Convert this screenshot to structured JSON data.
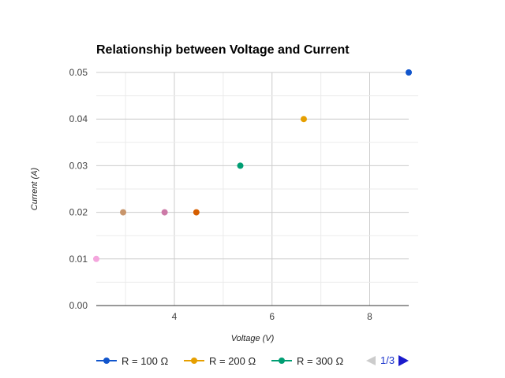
{
  "chart_data": {
    "type": "scatter",
    "title": "Relationship between Voltage and Current",
    "xlabel": "Voltage (V)",
    "ylabel": "Current (A)",
    "xlim": [
      2.4,
      8.8
    ],
    "ylim": [
      0,
      0.05
    ],
    "x_ticks": [
      4,
      6,
      8
    ],
    "y_ticks": [
      0.0,
      0.01,
      0.02,
      0.03,
      0.04,
      0.05
    ],
    "x_tick_labels": [
      "4",
      "6",
      "8"
    ],
    "y_tick_labels": [
      "0.00",
      "0.01",
      "0.02",
      "0.03",
      "0.04",
      "0.05"
    ],
    "grid": true,
    "legend_position": "bottom",
    "series": [
      {
        "name": "R = 100 Ω",
        "color": "#1155cc",
        "points": [
          {
            "x": 8.8,
            "y": 0.05
          }
        ]
      },
      {
        "name": "R = 200 Ω",
        "color": "#e69f00",
        "points": [
          {
            "x": 6.65,
            "y": 0.04
          }
        ]
      },
      {
        "name": "R = 300 Ω",
        "color": "#009e73",
        "points": [
          {
            "x": 5.35,
            "y": 0.03
          }
        ]
      },
      {
        "color": "#d55e00",
        "points": [
          {
            "x": 4.45,
            "y": 0.02
          }
        ]
      },
      {
        "color": "#cc79a7",
        "points": [
          {
            "x": 3.8,
            "y": 0.02
          }
        ]
      },
      {
        "color": "#c8956b",
        "points": [
          {
            "x": 2.95,
            "y": 0.02
          }
        ]
      },
      {
        "color": "#f4a6dd",
        "points": [
          {
            "x": 2.4,
            "y": 0.01
          }
        ]
      }
    ],
    "legend_items": [
      {
        "label": "R = 100 Ω",
        "color": "#1155cc"
      },
      {
        "label": "R = 200 Ω",
        "color": "#e69f00"
      },
      {
        "label": "R = 300 Ω",
        "color": "#009e73"
      }
    ],
    "legend_page": "1/3"
  }
}
